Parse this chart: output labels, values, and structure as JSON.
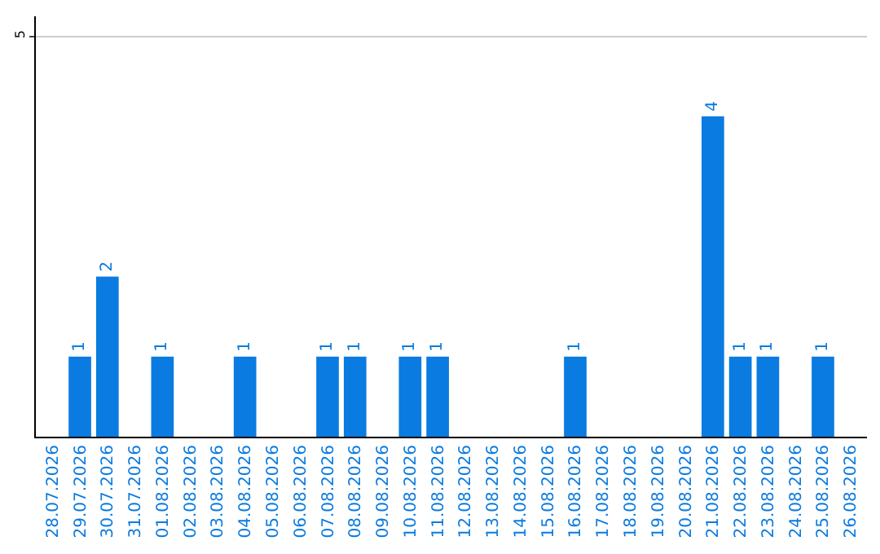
{
  "chart_data": {
    "type": "bar",
    "categories": [
      "28.07.2026",
      "29.07.2026",
      "30.07.2026",
      "31.07.2026",
      "01.08.2026",
      "02.08.2026",
      "03.08.2026",
      "04.08.2026",
      "05.08.2026",
      "06.08.2026",
      "07.08.2026",
      "08.08.2026",
      "09.08.2026",
      "10.08.2026",
      "11.08.2026",
      "12.08.2026",
      "13.08.2026",
      "14.08.2026",
      "15.08.2026",
      "16.08.2026",
      "17.08.2026",
      "18.08.2026",
      "19.08.2026",
      "20.08.2026",
      "21.08.2026",
      "22.08.2026",
      "23.08.2026",
      "24.08.2026",
      "25.08.2026",
      "26.08.2026"
    ],
    "values": [
      0,
      1,
      2,
      0,
      1,
      0,
      0,
      1,
      0,
      0,
      1,
      1,
      0,
      1,
      1,
      0,
      0,
      0,
      0,
      1,
      0,
      0,
      0,
      0,
      4,
      1,
      1,
      0,
      1,
      0
    ],
    "value_labels": [
      null,
      "1",
      "2",
      null,
      "1",
      null,
      null,
      "1",
      null,
      null,
      "1",
      "1",
      null,
      "1",
      "1",
      null,
      null,
      null,
      null,
      "1",
      null,
      null,
      null,
      null,
      "4",
      "1",
      "1",
      null,
      "1",
      null
    ],
    "color": "#0a7be0",
    "ylim": [
      0,
      5.25
    ],
    "yticks": [
      5
    ],
    "grid": "y",
    "legend": false
  }
}
